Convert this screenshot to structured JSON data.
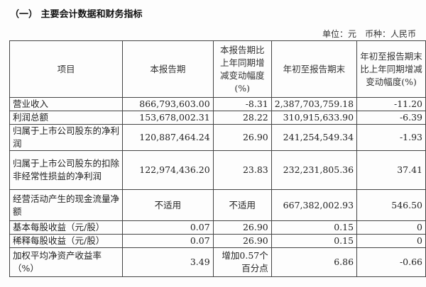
{
  "title": "（一） 主要会计数据和财务指标",
  "unit_line": "单位：元　币种：人民币",
  "headers": [
    "项目",
    "本报告期",
    "本报告期比上年同期增减变动幅度(%)",
    "年初至报告期末",
    "年初至报告期末比上年同期增减变动幅度(%)"
  ],
  "rows": [
    {
      "item": "营业收入",
      "current": "866,793,603.00",
      "current_change": "-8.31",
      "ytd": "2,387,703,759.18",
      "ytd_change": "-11.20"
    },
    {
      "item": "利润总额",
      "current": "153,678,002.31",
      "current_change": "28.22",
      "ytd": "310,915,633.90",
      "ytd_change": "-6.39"
    },
    {
      "item": "归属于上市公司股东的净利润",
      "current": "120,887,464.24",
      "current_change": "26.90",
      "ytd": "241,254,549.34",
      "ytd_change": "-1.93"
    },
    {
      "item": "归属于上市公司股东的扣除非经常性损益的净利润",
      "current": "122,974,436.20",
      "current_change": "23.83",
      "ytd": "232,231,805.36",
      "ytd_change": "37.41"
    },
    {
      "item": "经营活动产生的现金流量净额",
      "current": "不适用",
      "current_change": "不适用",
      "ytd": "667,382,002.93",
      "ytd_change": "546.50"
    },
    {
      "item": "基本每股收益（元/股）",
      "current": "0.07",
      "current_change": "26.90",
      "ytd": "0.15",
      "ytd_change": "0"
    },
    {
      "item": "稀释每股收益（元/股）",
      "current": "0.07",
      "current_change": "26.90",
      "ytd": "0.15",
      "ytd_change": "0"
    },
    {
      "item": "加权平均净资产收益率（%）",
      "current": "3.49",
      "current_change": "增加0.57个百分点",
      "ytd": "6.86",
      "ytd_change": "-0.66"
    }
  ]
}
